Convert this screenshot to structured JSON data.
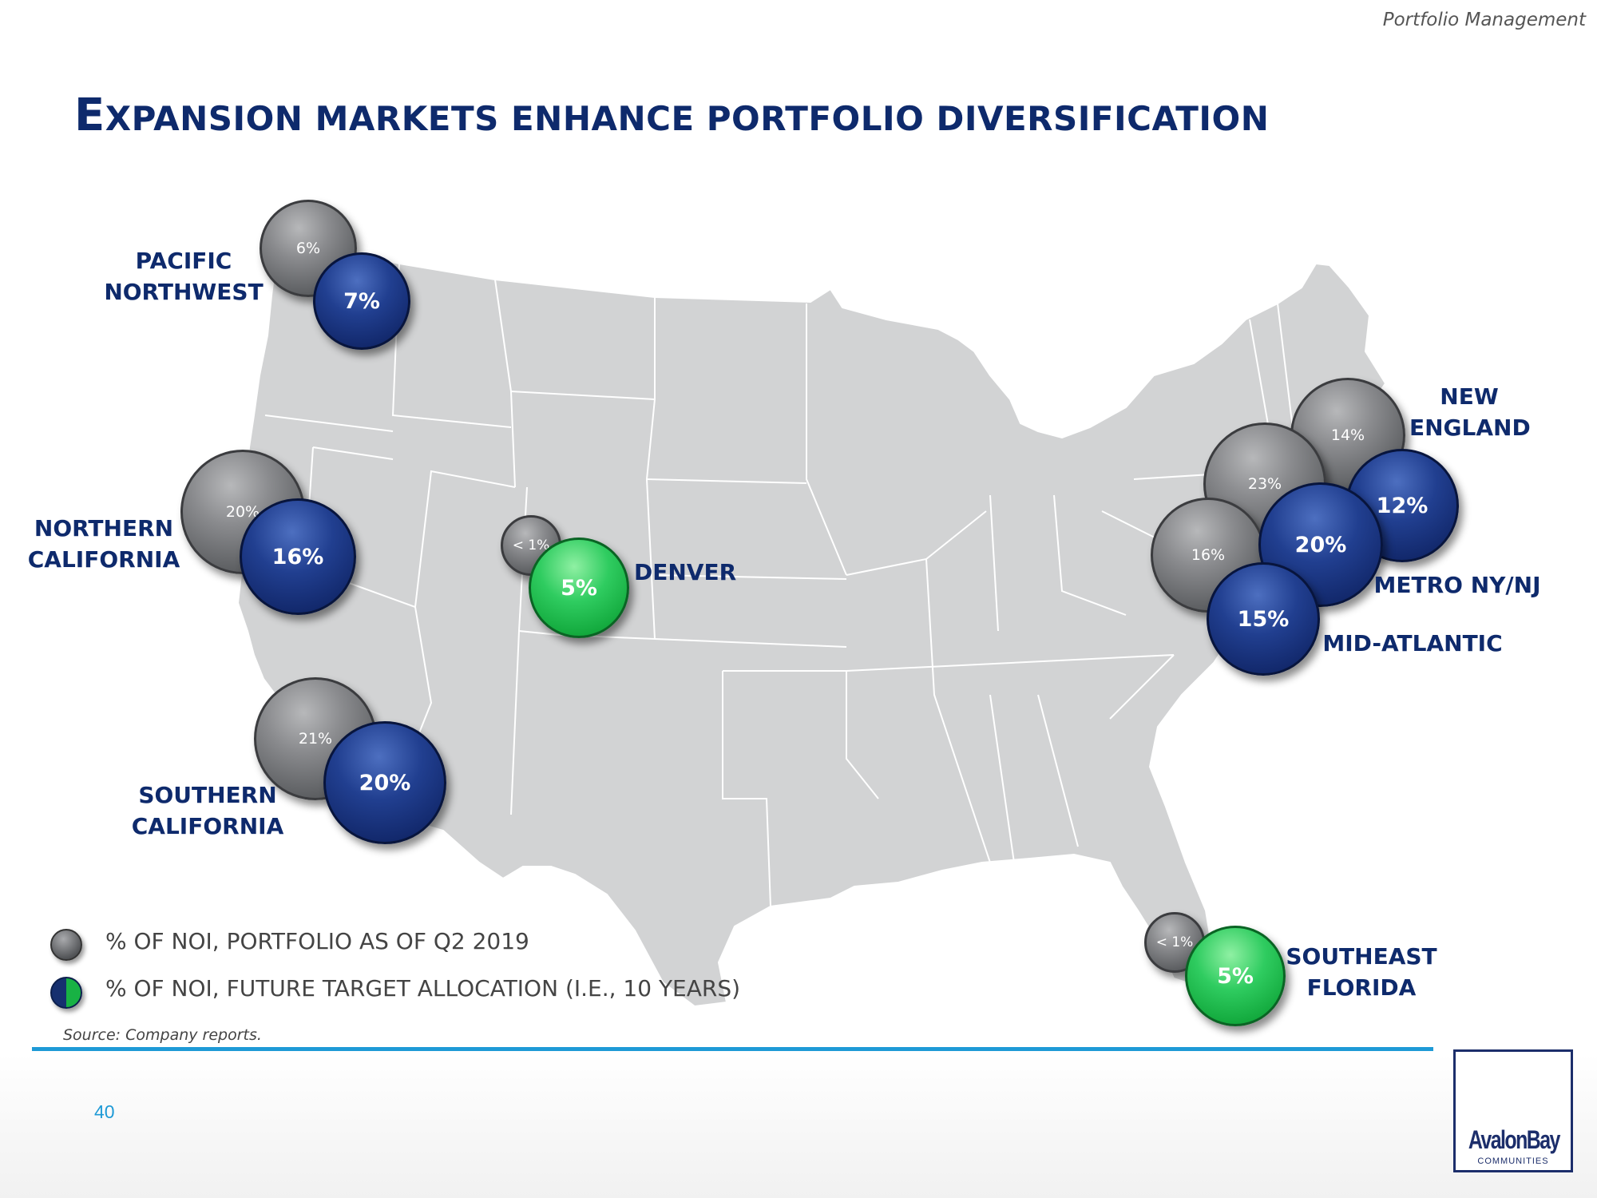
{
  "header": {
    "section": "Portfolio Management"
  },
  "title": {
    "first_letter": "E",
    "rest": "XPANSION MARKETS ENHANCE PORTFOLIO DIVERSIFICATION"
  },
  "regions": {
    "pacific_northwest": {
      "lines": [
        "PACIFIC",
        "NORTHWEST"
      ],
      "current": "6%",
      "target": "7%"
    },
    "northern_california": {
      "lines": [
        "NORTHERN",
        "CALIFORNIA"
      ],
      "current": "20%",
      "target": "16%"
    },
    "southern_california": {
      "lines": [
        "SOUTHERN",
        "CALIFORNIA"
      ],
      "current": "21%",
      "target": "20%"
    },
    "denver": {
      "lines": [
        "DENVER"
      ],
      "current": "< 1%",
      "target": "5%"
    },
    "new_england": {
      "lines": [
        "NEW",
        "ENGLAND"
      ],
      "current": "14%",
      "target": "12%"
    },
    "metro_ny_nj": {
      "lines": [
        "METRO NY/NJ"
      ],
      "current": "23%",
      "target": "20%"
    },
    "mid_atlantic": {
      "lines": [
        "MID-ATLANTIC"
      ],
      "current": "16%",
      "target": "15%"
    },
    "southeast_florida": {
      "lines": [
        "SOUTHEAST",
        "FLORIDA"
      ],
      "current": "< 1%",
      "target": "5%"
    }
  },
  "legend": {
    "current": "% OF NOI, PORTFOLIO AS OF Q2 2019",
    "target": "% OF NOI, FUTURE TARGET ALLOCATION (I.E., 10 YEARS)"
  },
  "source": "Source:  Company reports.",
  "page_number": "40",
  "logo": {
    "name": "AvalonBay",
    "sub": "COMMUNITIES"
  },
  "colors": {
    "title": "#0e2a6c",
    "current_bubble": "#6b6c6f",
    "target_bubble": "#12286b",
    "expansion_bubble": "#18b244",
    "rule": "#1e9ad6",
    "map": "#d2d3d4"
  }
}
